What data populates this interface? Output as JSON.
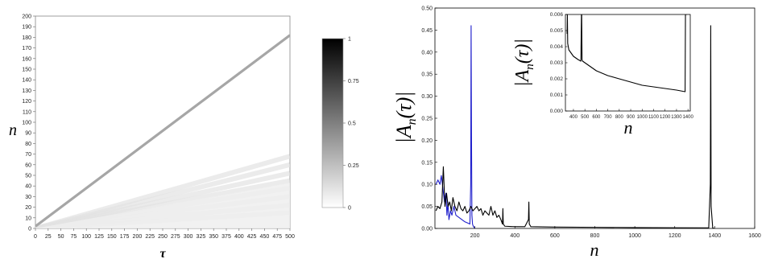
{
  "chart_data": [
    {
      "type": "heatmap",
      "xlabel": "τ",
      "ylabel": "n",
      "xlim": [
        0,
        500
      ],
      "ylim": [
        0,
        200
      ],
      "xticks": [
        0,
        25,
        50,
        75,
        100,
        125,
        150,
        175,
        200,
        225,
        250,
        275,
        300,
        325,
        350,
        375,
        400,
        425,
        450,
        475,
        500
      ],
      "yticks": [
        0,
        10,
        20,
        30,
        40,
        50,
        60,
        70,
        80,
        90,
        100,
        110,
        120,
        130,
        140,
        150,
        160,
        170,
        180,
        190,
        200
      ],
      "colorbar": {
        "min": 0,
        "max": 1,
        "ticks": [
          0,
          0.25,
          0.5,
          0.75,
          1
        ],
        "colors": [
          "#ffffff",
          "#000000"
        ]
      },
      "ridge": {
        "x": [
          0,
          500
        ],
        "y": [
          2,
          182
        ],
        "value": 0.35
      },
      "fan_rays": [
        {
          "x": [
            0,
            500
          ],
          "y": [
            0,
            68
          ]
        },
        {
          "x": [
            0,
            500
          ],
          "y": [
            0,
            60
          ]
        },
        {
          "x": [
            0,
            500
          ],
          "y": [
            0,
            52
          ]
        },
        {
          "x": [
            0,
            500
          ],
          "y": [
            0,
            45
          ]
        },
        {
          "x": [
            0,
            500
          ],
          "y": [
            0,
            38
          ]
        },
        {
          "x": [
            0,
            500
          ],
          "y": [
            0,
            30
          ]
        },
        {
          "x": [
            0,
            500
          ],
          "y": [
            0,
            22
          ]
        },
        {
          "x": [
            0,
            500
          ],
          "y": [
            0,
            15
          ]
        }
      ]
    },
    {
      "type": "line",
      "xlabel": "n",
      "ylabel": "|A_n(τ)|",
      "xlim": [
        0,
        1600
      ],
      "ylim": [
        0,
        0.5
      ],
      "xticks": [
        200,
        400,
        600,
        800,
        1000,
        1200,
        1400,
        1600
      ],
      "yticks": [
        0,
        0.05,
        0.1,
        0.15,
        0.2,
        0.25,
        0.3,
        0.35,
        0.4,
        0.45,
        0.5
      ],
      "series": [
        {
          "color": "#1f1fcc",
          "x": [
            5,
            15,
            25,
            32,
            40,
            48,
            55,
            60,
            65,
            70,
            78,
            85,
            95,
            105,
            120,
            135,
            150,
            165,
            175,
            179,
            181,
            183,
            185,
            188,
            192,
            200
          ],
          "y": [
            0.1,
            0.11,
            0.1,
            0.12,
            0.09,
            0.06,
            0.08,
            0.03,
            0.06,
            0.02,
            0.04,
            0.03,
            0.05,
            0.03,
            0.025,
            0.02,
            0.015,
            0.012,
            0.01,
            0.1,
            0.46,
            0.2,
            0.03,
            0.01,
            0.005,
            0.0
          ]
        },
        {
          "color": "#000000",
          "x": [
            5,
            15,
            25,
            35,
            42,
            50,
            58,
            66,
            74,
            82,
            90,
            100,
            110,
            120,
            130,
            140,
            150,
            160,
            170,
            180,
            190,
            200,
            210,
            220,
            230,
            240,
            250,
            260,
            270,
            280,
            290,
            300,
            310,
            320,
            330,
            338,
            340,
            342,
            350,
            400,
            450,
            468,
            470,
            472,
            480,
            600,
            800,
            1000,
            1200,
            1370,
            1378,
            1380,
            1382,
            1390,
            1400
          ],
          "y": [
            0.04,
            0.05,
            0.045,
            0.06,
            0.14,
            0.05,
            0.08,
            0.05,
            0.06,
            0.04,
            0.07,
            0.05,
            0.04,
            0.06,
            0.045,
            0.04,
            0.05,
            0.035,
            0.04,
            0.05,
            0.04,
            0.045,
            0.05,
            0.04,
            0.045,
            0.03,
            0.04,
            0.035,
            0.03,
            0.05,
            0.03,
            0.04,
            0.025,
            0.03,
            0.02,
            0.01,
            0.045,
            0.01,
            0.005,
            0.004,
            0.004,
            0.02,
            0.06,
            0.01,
            0.004,
            0.003,
            0.0025,
            0.002,
            0.0015,
            0.0012,
            0.1,
            0.46,
            0.05,
            0.001,
            0.0
          ]
        }
      ]
    },
    {
      "type": "line",
      "xlabel": "n",
      "ylabel": "|A_n(τ)|",
      "xlim": [
        330,
        1420
      ],
      "ylim": [
        0,
        0.006
      ],
      "xticks": [
        400,
        500,
        600,
        700,
        800,
        900,
        1000,
        1100,
        1200,
        1300,
        1400
      ],
      "yticks": [
        0,
        0.001,
        0.002,
        0.003,
        0.004,
        0.005,
        0.006
      ],
      "series": [
        {
          "color": "#000000",
          "x": [
            345,
            347,
            350,
            360,
            380,
            400,
            420,
            440,
            465,
            470,
            472,
            475,
            480,
            500,
            600,
            700,
            800,
            900,
            1000,
            1100,
            1200,
            1300,
            1375,
            1378,
            1380,
            1382,
            1390
          ],
          "y": [
            0.0048,
            0.006,
            0.0042,
            0.0038,
            0.0036,
            0.0034,
            0.0033,
            0.0032,
            0.0031,
            0.006,
            0.006,
            0.0032,
            0.0031,
            0.003,
            0.0025,
            0.0022,
            0.002,
            0.0018,
            0.0016,
            0.0015,
            0.0014,
            0.0013,
            0.0012,
            0.006,
            0.006,
            0.006,
            0.006
          ]
        }
      ]
    }
  ]
}
